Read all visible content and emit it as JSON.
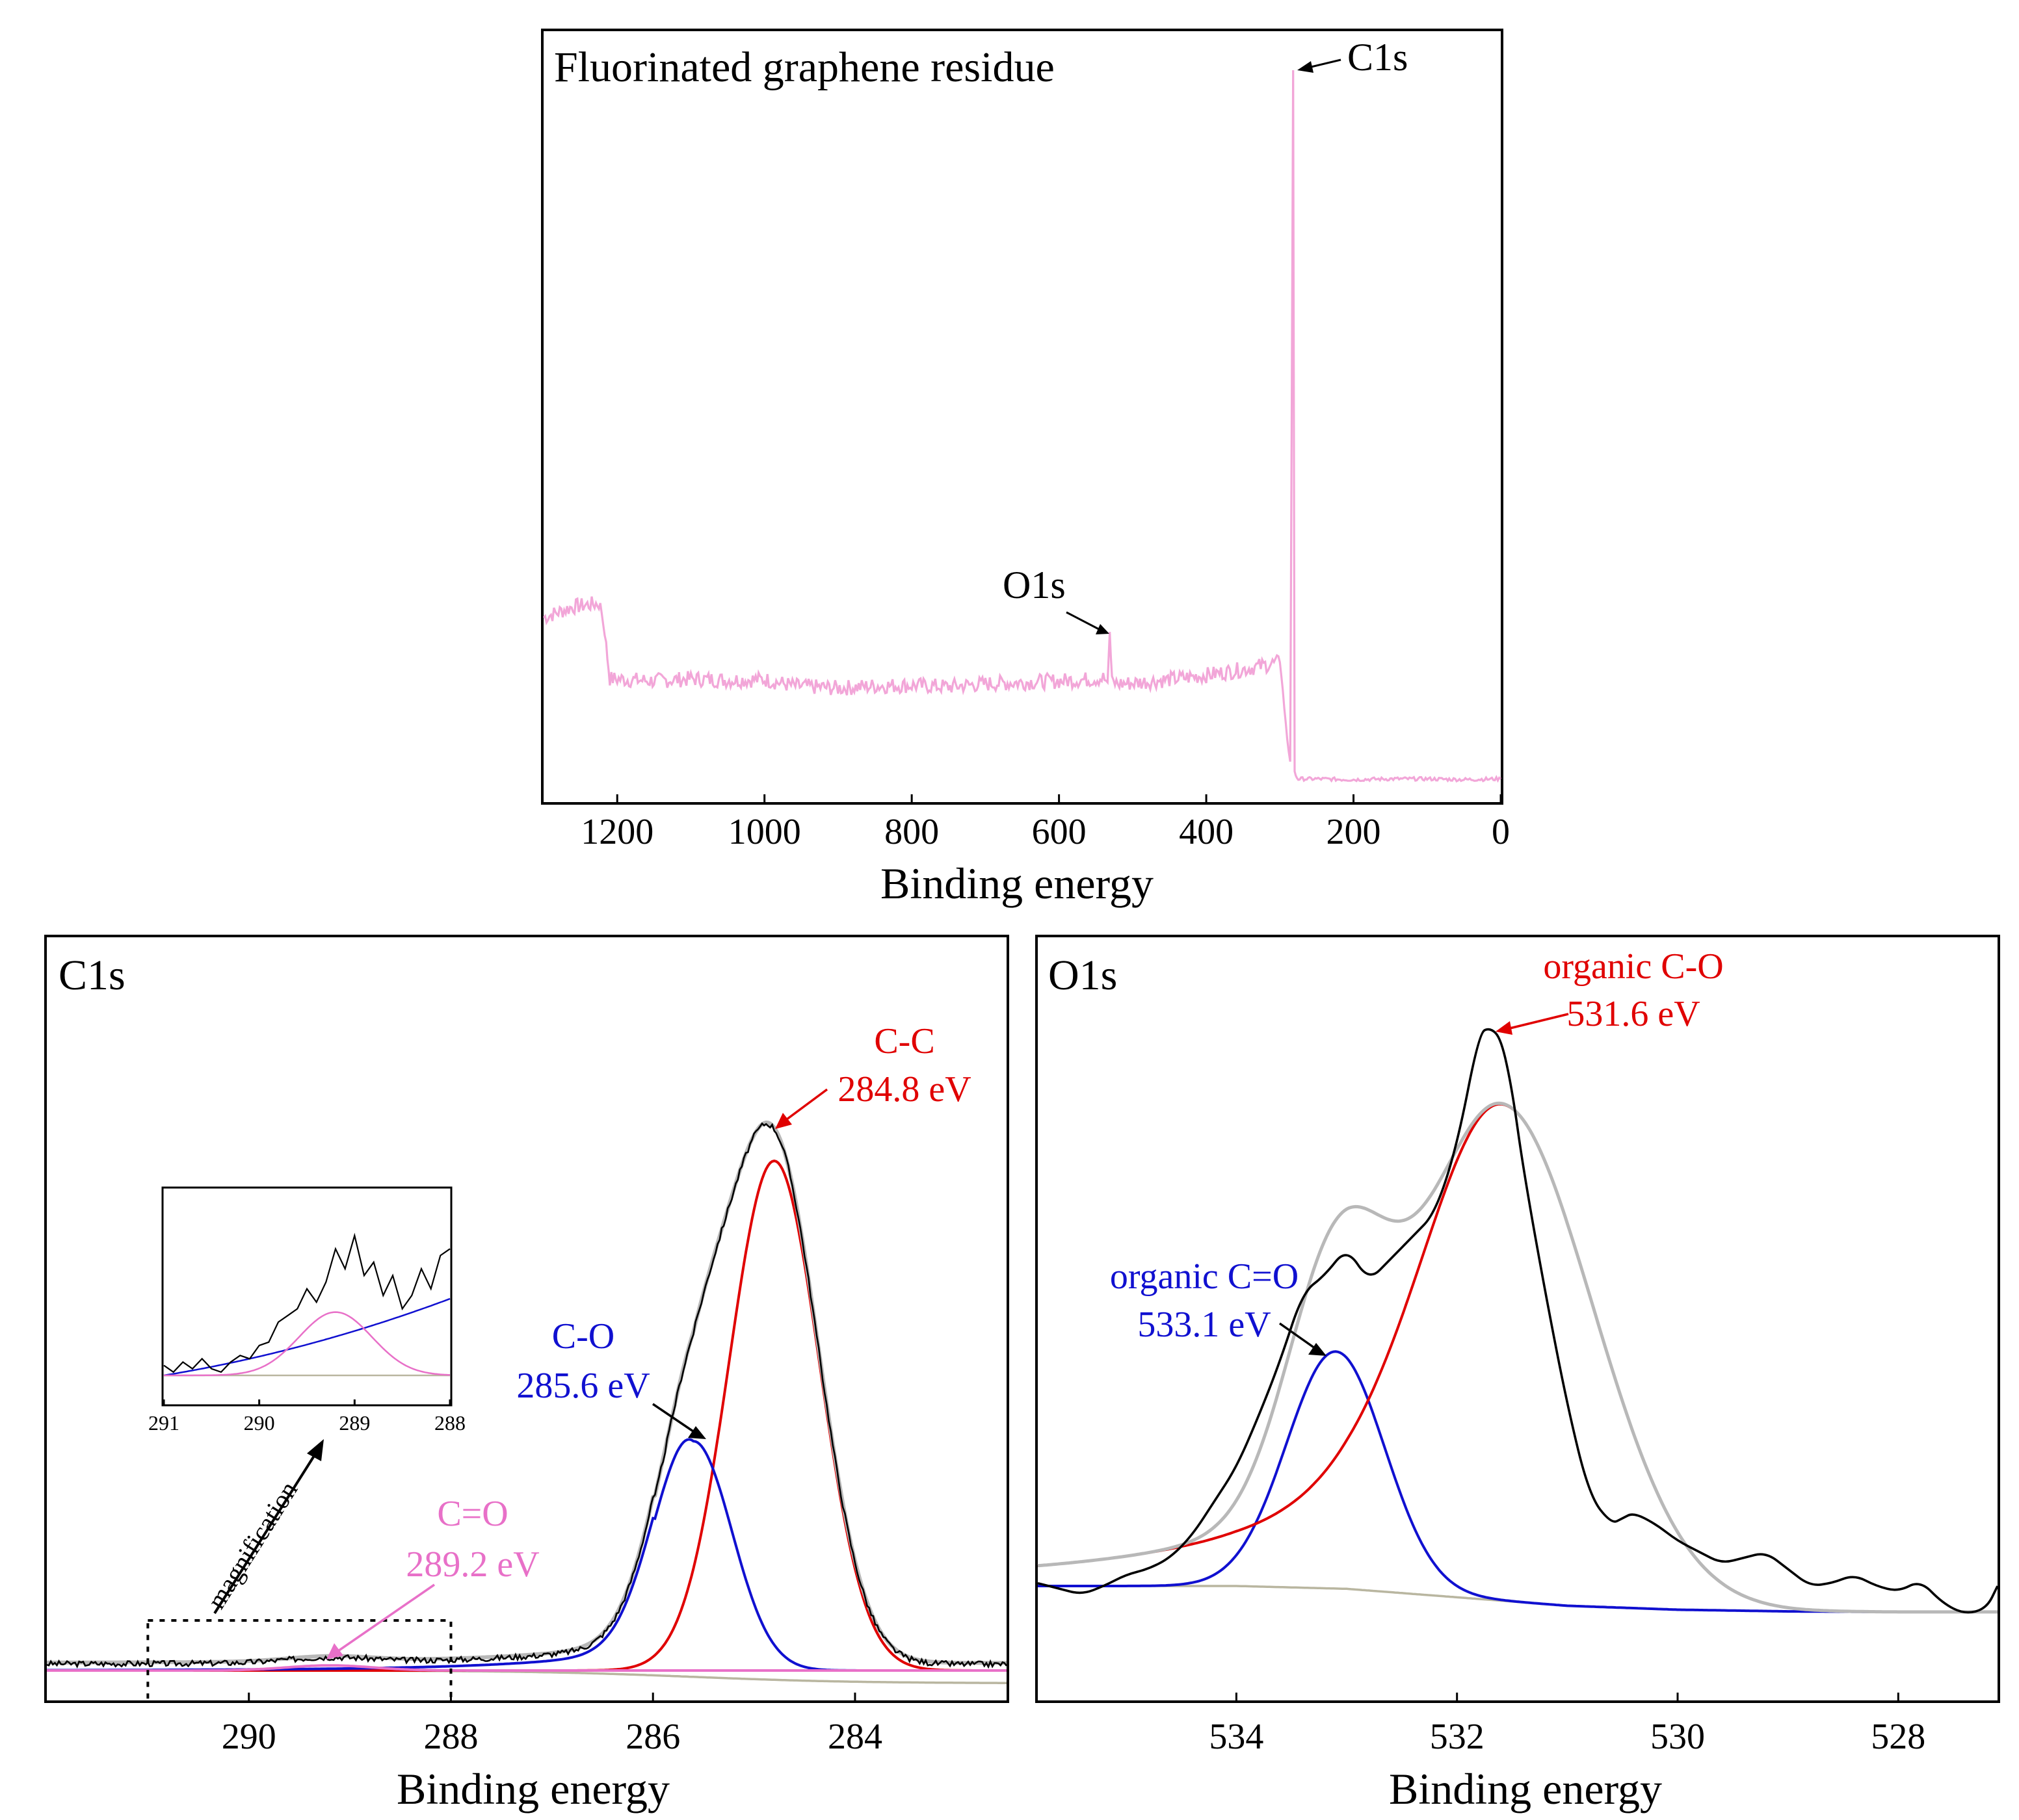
{
  "colors": {
    "survey": "#f2a6d8",
    "measured": "#000000",
    "envelope": "#b8b8b8",
    "cc": "#e00000",
    "co": "#1010d0",
    "ceo": "#e870c8",
    "background": "#b9b6a0"
  },
  "chart_data": [
    {
      "id": "survey",
      "type": "line",
      "title": "Fluorinated graphene residue",
      "xlabel": "Binding energy",
      "ylabel": "",
      "xlim": [
        1300,
        0
      ],
      "ylim": [
        0,
        100
      ],
      "xticks": [
        "1200",
        "1000",
        "800",
        "600",
        "400",
        "200",
        "0"
      ],
      "xtick_values": [
        1200,
        1000,
        800,
        600,
        400,
        200,
        0
      ],
      "series": [
        {
          "name": "survey",
          "x": [
            1300,
            1260,
            1223,
            1215,
            1210,
            1150,
            1100,
            1050,
            1000,
            960,
            900,
            850,
            800,
            750,
            700,
            650,
            600,
            560,
            540,
            534,
            531,
            528,
            520,
            500,
            450,
            400,
            350,
            320,
            300,
            294,
            290,
            286,
            284,
            282,
            280,
            277,
            275,
            250,
            200,
            150,
            100,
            50,
            0
          ],
          "y": [
            24,
            25.5,
            26,
            20,
            15.5,
            15.2,
            15.5,
            15.3,
            15.4,
            14.5,
            14.2,
            14.5,
            14.6,
            14.4,
            14.8,
            15.0,
            15.2,
            15.4,
            15.6,
            15.0,
            22.0,
            15.0,
            14.8,
            14.9,
            15.4,
            16.0,
            16.8,
            17.4,
            17.8,
            12.0,
            7.0,
            4.0,
            50.0,
            100.0,
            2.5,
            1.8,
            1.6,
            1.6,
            1.5,
            1.6,
            1.6,
            1.5,
            1.6
          ]
        }
      ],
      "annotations": [
        {
          "text": "C1s",
          "x": 282,
          "y": 100
        },
        {
          "text": "O1s",
          "x": 531,
          "y": 22
        }
      ]
    },
    {
      "id": "c1s",
      "type": "line",
      "title": "C1s",
      "xlabel": "Binding energy",
      "ylabel": "",
      "xlim": [
        292,
        282.5
      ],
      "ylim": [
        -2,
        100
      ],
      "xticks": [
        "290",
        "288",
        "286",
        "284"
      ],
      "xtick_values": [
        290,
        288,
        286,
        284
      ],
      "components": [
        {
          "name": "C-C",
          "center": 284.8,
          "label": "284.8 eV",
          "height": 80,
          "fwhm": 1.05
        },
        {
          "name": "C-O",
          "center": 285.6,
          "label": "285.6 eV",
          "height": 36,
          "fwhm": 0.9
        },
        {
          "name": "C=O",
          "center": 289.2,
          "label": "289.2 eV",
          "height": 0.8,
          "fwhm": 1.0
        }
      ],
      "series": [
        {
          "name": "Measured",
          "color_key": "measured"
        },
        {
          "name": "Envelope",
          "color_key": "envelope"
        },
        {
          "name": "C-C",
          "color_key": "cc"
        },
        {
          "name": "C-O",
          "color_key": "co"
        },
        {
          "name": "C=O",
          "color_key": "ceo"
        },
        {
          "name": "Background",
          "color_key": "background"
        }
      ],
      "labels": {
        "cc_name": "C-C",
        "cc_energy": "284.8 eV",
        "co_name": "C-O",
        "co_energy": "285.6 eV",
        "ceo_name": "C=O",
        "ceo_energy": "289.2 eV",
        "magnification": "magnification"
      },
      "zoom_region": {
        "xlim": [
          291,
          288
        ]
      },
      "inset": {
        "type": "line",
        "xlim": [
          291,
          288
        ],
        "xticks": [
          "291",
          "290",
          "289",
          "288"
        ],
        "xtick_values": [
          291,
          290,
          289,
          288
        ],
        "measured": {
          "x": [
            291.0,
            290.9,
            290.8,
            290.7,
            290.6,
            290.5,
            290.4,
            290.3,
            290.2,
            290.1,
            290.0,
            289.9,
            289.8,
            289.7,
            289.6,
            289.5,
            289.4,
            289.3,
            289.2,
            289.1,
            289.0,
            288.9,
            288.8,
            288.7,
            288.6,
            288.5,
            288.4,
            288.3,
            288.2,
            288.1,
            288.0
          ],
          "y": [
            0.15,
            0.05,
            0.2,
            0.1,
            0.25,
            0.1,
            0.05,
            0.2,
            0.3,
            0.25,
            0.45,
            0.5,
            0.8,
            0.9,
            1.0,
            1.3,
            1.1,
            1.4,
            1.9,
            1.6,
            2.1,
            1.5,
            1.7,
            1.2,
            1.5,
            1.0,
            1.2,
            1.6,
            1.3,
            1.8,
            1.9
          ]
        }
      }
    },
    {
      "id": "o1s",
      "type": "line",
      "title": "O1s",
      "xlabel": "Binding energy",
      "ylabel": "",
      "xlim": [
        535.8,
        527.1
      ],
      "ylim": [
        -5,
        100
      ],
      "xticks": [
        "534",
        "532",
        "530",
        "528"
      ],
      "xtick_values": [
        534,
        532,
        530,
        528
      ],
      "components": [
        {
          "name": "organic C-O",
          "center": 531.6,
          "label": "531.6 eV",
          "height": 88,
          "fwhm": 1.7
        },
        {
          "name": "organic C=O",
          "center": 533.1,
          "label": "533.1 eV",
          "height": 42,
          "fwhm": 1.05
        }
      ],
      "labels": {
        "co_name": "organic C-O",
        "co_energy": "531.6 eV",
        "ceo_name": "organic C=O",
        "ceo_energy": "533.1 eV"
      },
      "measured": {
        "x": [
          535.8,
          535.6,
          535.4,
          535.2,
          535.0,
          534.8,
          534.6,
          534.4,
          534.2,
          534.0,
          533.8,
          533.6,
          533.4,
          533.2,
          533.0,
          532.8,
          532.6,
          532.4,
          532.2,
          532.0,
          531.8,
          531.7,
          531.6,
          531.5,
          531.4,
          531.2,
          531.0,
          530.8,
          530.6,
          530.5,
          530.4,
          530.2,
          530.0,
          529.8,
          529.6,
          529.4,
          529.2,
          529.0,
          528.8,
          528.6,
          528.4,
          528.2,
          528.0,
          527.8,
          527.6,
          527.4,
          527.2,
          527.1
        ],
        "y": [
          0.5,
          -0.5,
          -1.5,
          0,
          2,
          3,
          5,
          9,
          15,
          21,
          30,
          40,
          52,
          55,
          60,
          54,
          58,
          62,
          66,
          78,
          98,
          99,
          97,
          88,
          74,
          52,
          32,
          16,
          11,
          12,
          13,
          11,
          8,
          6,
          4,
          5,
          6,
          3,
          0,
          0.5,
          2,
          0,
          -1,
          1,
          -3,
          -5,
          -4,
          0
        ]
      },
      "background": {
        "x": [
          535.8,
          534.0,
          533.0,
          532.0,
          531.0,
          530.0,
          529.0,
          528.0,
          527.1
        ],
        "y": [
          0,
          0,
          -0.5,
          -2,
          -3.5,
          -4.2,
          -4.5,
          -4.6,
          -4.6
        ]
      }
    }
  ]
}
